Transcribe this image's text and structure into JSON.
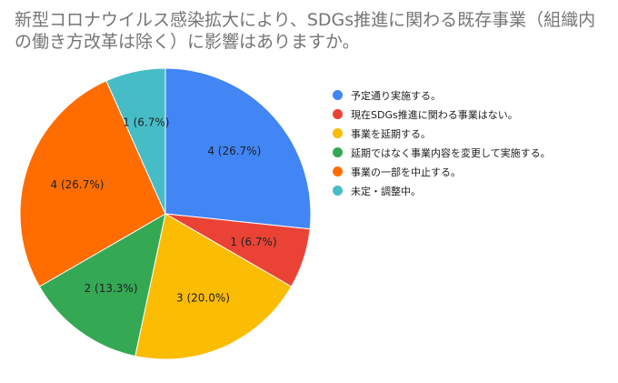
{
  "chart_data": {
    "type": "pie",
    "title_lines": [
      "新型コロナウイルス感染拡大により、SDGs推進に関わる既存事業（組織内",
      "の働き方改革は除く）に影響はありますか。"
    ],
    "slices": [
      {
        "name": "予定通り実施する。",
        "value": 4,
        "label": "4 (26.7%)",
        "color": "#4285f4"
      },
      {
        "name": "現在SDGs推進に関わる事業はない。",
        "value": 1,
        "label": "1 (6.7%)",
        "color": "#ea4335"
      },
      {
        "name": "事業を延期する。",
        "value": 3,
        "label": "3 (20.0%)",
        "color": "#fbbc04"
      },
      {
        "name": "延期ではなく事業内容を変更して実施する。",
        "value": 2,
        "label": "2 (13.3%)",
        "color": "#34a853"
      },
      {
        "name": "事業の一部を中止する。",
        "value": 4,
        "label": "4 (26.7%)",
        "color": "#ff6d01"
      },
      {
        "name": "未定・調整中。",
        "value": 1,
        "label": "1 (6.7%)",
        "color": "#46bdc6"
      }
    ],
    "start": "top (12 o'clock)",
    "direction": "clockwise",
    "legend_position": "right"
  }
}
